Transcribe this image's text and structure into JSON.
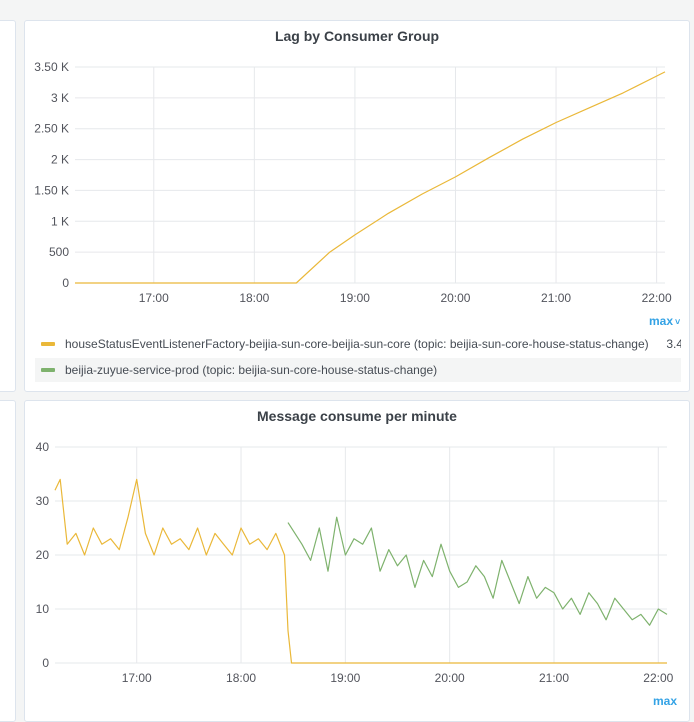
{
  "panels": [
    {
      "title": "Lag by Consumer Group",
      "max_label": "max",
      "legend": [
        {
          "label": "houseStatusEventListenerFactory-beijia-sun-core-beijia-sun-core (topic: beijia-sun-core-house-status-change)",
          "value": "3.4",
          "color": "#eab839"
        },
        {
          "label": "beijia-zuyue-service-prod (topic: beijia-sun-core-house-status-change)",
          "value": "",
          "color": "#7eb26d"
        }
      ]
    },
    {
      "title": "Message consume per minute",
      "max_label": "max"
    }
  ],
  "chart_data": [
    {
      "type": "line",
      "title": "Lag by Consumer Group",
      "xlabel": "",
      "ylabel": "",
      "x_ticks": [
        "17:00",
        "18:00",
        "19:00",
        "20:00",
        "21:00",
        "22:00"
      ],
      "y_ticks": [
        "0",
        "500",
        "1 K",
        "1.50 K",
        "2 K",
        "2.50 K",
        "3 K",
        "3.50 K"
      ],
      "xlim": [
        "16:13",
        "22:05"
      ],
      "ylim": [
        0,
        3500
      ],
      "legend_position": "bottom",
      "grid": true,
      "series": [
        {
          "name": "houseStatusEventListenerFactory-beijia-sun-core-beijia-sun-core (topic: beijia-sun-core-house-status-change)",
          "color": "#eab839",
          "x": [
            "16:13",
            "17:00",
            "18:00",
            "18:25",
            "18:45",
            "19:00",
            "19:20",
            "19:40",
            "20:00",
            "20:20",
            "20:40",
            "21:00",
            "21:20",
            "21:40",
            "22:05"
          ],
          "y": [
            0,
            0,
            0,
            0,
            500,
            780,
            1130,
            1440,
            1720,
            2030,
            2330,
            2600,
            2840,
            3080,
            3420
          ]
        },
        {
          "name": "beijia-zuyue-service-prod (topic: beijia-sun-core-house-status-change)",
          "color": "#7eb26d",
          "x": [],
          "y": []
        }
      ]
    },
    {
      "type": "line",
      "title": "Message consume per minute",
      "xlabel": "",
      "ylabel": "",
      "x_ticks": [
        "17:00",
        "18:00",
        "19:00",
        "20:00",
        "21:00",
        "22:00"
      ],
      "y_ticks": [
        "0",
        "10",
        "20",
        "30",
        "40"
      ],
      "xlim": [
        "16:13",
        "22:05"
      ],
      "ylim": [
        0,
        40
      ],
      "grid": true,
      "series": [
        {
          "name": "houseStatusEventListenerFactory-beijia-sun-core-beijia-sun-core (topic: beijia-sun-core-house-status-change)",
          "color": "#eab839",
          "x": [
            "16:13",
            "16:16",
            "16:20",
            "16:25",
            "16:30",
            "16:35",
            "16:40",
            "16:45",
            "16:50",
            "16:55",
            "17:00",
            "17:05",
            "17:10",
            "17:15",
            "17:20",
            "17:25",
            "17:30",
            "17:35",
            "17:40",
            "17:45",
            "17:50",
            "17:55",
            "18:00",
            "18:05",
            "18:10",
            "18:15",
            "18:20",
            "18:25",
            "18:27",
            "18:29",
            "19:00",
            "20:00",
            "21:00",
            "22:05"
          ],
          "y": [
            32,
            34,
            22,
            24,
            20,
            25,
            22,
            23,
            21,
            27,
            34,
            24,
            20,
            25,
            22,
            23,
            21,
            25,
            20,
            24,
            22,
            20,
            25,
            22,
            23,
            21,
            24,
            20,
            6,
            0,
            0,
            0,
            0,
            0
          ]
        },
        {
          "name": "beijia-zuyue-service-prod (topic: beijia-sun-core-house-status-change)",
          "color": "#7eb26d",
          "x": [
            "18:27",
            "18:35",
            "18:40",
            "18:45",
            "18:50",
            "18:55",
            "19:00",
            "19:05",
            "19:10",
            "19:15",
            "19:20",
            "19:25",
            "19:30",
            "19:35",
            "19:40",
            "19:45",
            "19:50",
            "19:55",
            "20:00",
            "20:05",
            "20:10",
            "20:15",
            "20:20",
            "20:25",
            "20:30",
            "20:35",
            "20:40",
            "20:45",
            "20:50",
            "20:55",
            "21:00",
            "21:05",
            "21:10",
            "21:15",
            "21:20",
            "21:25",
            "21:30",
            "21:35",
            "21:40",
            "21:45",
            "21:50",
            "21:55",
            "22:00",
            "22:05"
          ],
          "y": [
            26,
            22,
            19,
            25,
            17,
            27,
            20,
            23,
            22,
            25,
            17,
            21,
            18,
            20,
            14,
            19,
            16,
            22,
            17,
            14,
            15,
            18,
            16,
            12,
            19,
            15,
            11,
            16,
            12,
            14,
            13,
            10,
            12,
            9,
            13,
            11,
            8,
            12,
            10,
            8,
            9,
            7,
            10,
            9
          ]
        }
      ]
    }
  ]
}
